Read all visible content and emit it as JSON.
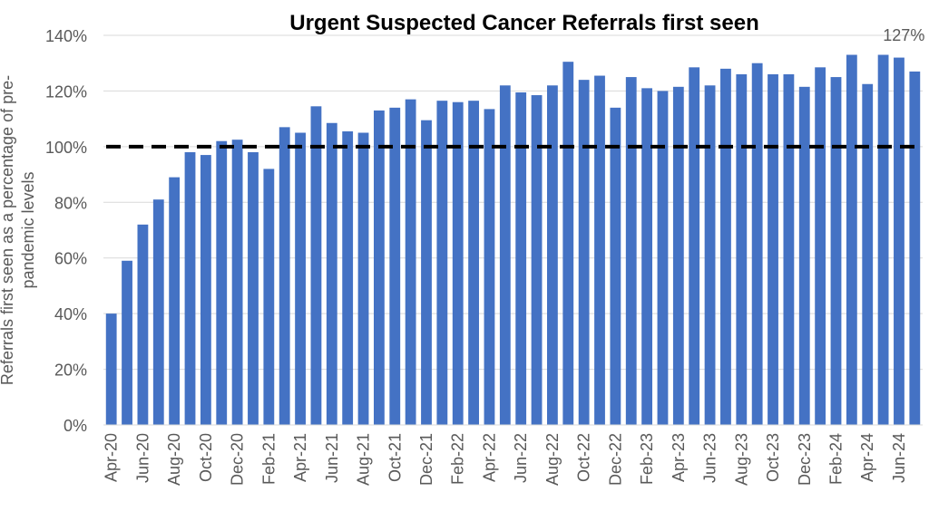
{
  "chart_data": {
    "type": "bar",
    "title": "Urgent Suspected Cancer Referrals first seen",
    "ylabel_lines": [
      "Referrals first seen as a percentage of pre-",
      "pandemic levels"
    ],
    "xlabel": "",
    "ylim": [
      0,
      140
    ],
    "y_ticks": [
      0,
      20,
      40,
      60,
      80,
      100,
      120,
      140
    ],
    "y_tick_labels": [
      "0%",
      "20%",
      "40%",
      "60%",
      "80%",
      "100%",
      "120%",
      "140%"
    ],
    "gridlines": true,
    "bar_color": "#4472C4",
    "reference_line": {
      "value": 100,
      "style": "dashed",
      "color": "#000000"
    },
    "categories": [
      "Apr-20",
      "May-20",
      "Jun-20",
      "Jul-20",
      "Aug-20",
      "Sep-20",
      "Oct-20",
      "Nov-20",
      "Dec-20",
      "Jan-21",
      "Feb-21",
      "Mar-21",
      "Apr-21",
      "May-21",
      "Jun-21",
      "Jul-21",
      "Aug-21",
      "Sep-21",
      "Oct-21",
      "Nov-21",
      "Dec-21",
      "Jan-22",
      "Feb-22",
      "Mar-22",
      "Apr-22",
      "May-22",
      "Jun-22",
      "Jul-22",
      "Aug-22",
      "Sep-22",
      "Oct-22",
      "Nov-22",
      "Dec-22",
      "Jan-23",
      "Feb-23",
      "Mar-23",
      "Apr-23",
      "May-23",
      "Jun-23",
      "Jul-23",
      "Aug-23",
      "Sep-23",
      "Oct-23",
      "Nov-23",
      "Dec-23",
      "Jan-24",
      "Feb-24",
      "Mar-24",
      "Apr-24",
      "May-24",
      "Jun-24",
      "Jul-24"
    ],
    "shown_tick_labels": [
      "Apr-20",
      "",
      "Jun-20",
      "",
      "Aug-20",
      "",
      "Oct-20",
      "",
      "Dec-20",
      "",
      "Feb-21",
      "",
      "Apr-21",
      "",
      "Jun-21",
      "",
      "Aug-21",
      "",
      "Oct-21",
      "",
      "Dec-21",
      "",
      "Feb-22",
      "",
      "Apr-22",
      "",
      "Jun-22",
      "",
      "Aug-22",
      "",
      "Oct-22",
      "",
      "Dec-22",
      "",
      "Feb-23",
      "",
      "Apr-23",
      "",
      "Jun-23",
      "",
      "Aug-23",
      "",
      "Oct-23",
      "",
      "Dec-23",
      "",
      "Feb-24",
      "",
      "Apr-24",
      "",
      "Jun-24",
      ""
    ],
    "values": [
      40,
      59,
      72,
      81,
      89,
      98,
      97,
      102,
      102.5,
      98,
      92,
      107,
      105,
      114.5,
      108.5,
      105.5,
      105,
      113,
      114,
      117,
      109.5,
      116.5,
      116,
      116.5,
      113.5,
      122,
      119.5,
      118.5,
      122,
      130.5,
      124,
      125.5,
      114,
      125,
      121,
      120,
      121.5,
      128.5,
      122,
      128,
      126,
      130,
      126,
      126,
      121.5,
      128.5,
      125,
      133,
      122.5,
      133,
      132,
      127
    ],
    "annotations": [
      {
        "text": "127%",
        "category": "Jul-24"
      }
    ]
  }
}
